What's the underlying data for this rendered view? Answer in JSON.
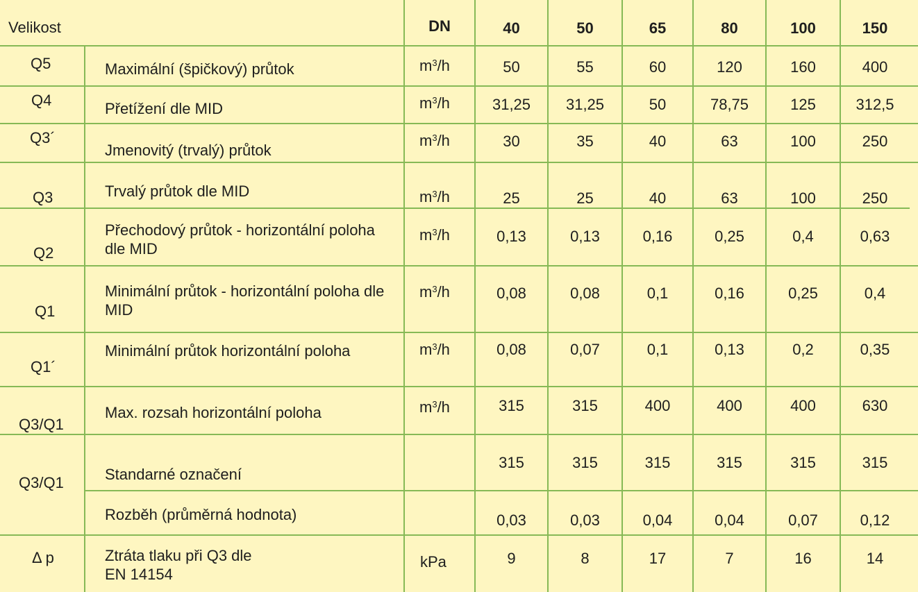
{
  "header": {
    "size_label": "Velikost",
    "dn_label": "DN",
    "sizes": [
      "40",
      "50",
      "65",
      "80",
      "100",
      "150"
    ]
  },
  "rows": [
    {
      "symbol": "Q5",
      "desc": "Maximální (špičkový) průtok",
      "unit": "m3/h",
      "values": [
        "50",
        "55",
        "60",
        "120",
        "160",
        "400"
      ]
    },
    {
      "symbol": "Q4",
      "desc": "Přetížení dle MID",
      "unit": "m3/h",
      "values": [
        "31,25",
        "31,25",
        "50",
        "78,75",
        "125",
        "312,5"
      ]
    },
    {
      "symbol": "Q3´",
      "desc": "Jmenovitý (trvalý) průtok",
      "unit": "m3/h",
      "values": [
        "30",
        "35",
        "40",
        "63",
        "100",
        "250"
      ]
    },
    {
      "symbol": "Q3",
      "desc": "Trvalý průtok dle MID",
      "unit": "m3/h",
      "values": [
        "25",
        "25",
        "40",
        "63",
        "100",
        "250"
      ]
    },
    {
      "symbol": "Q2",
      "desc": "Přechodový průtok - horizontální poloha dle MID",
      "unit": "m3/h",
      "values": [
        "0,13",
        "0,13",
        "0,16",
        "0,25",
        "0,4",
        "0,63"
      ]
    },
    {
      "symbol": "Q1",
      "desc": "Minimální průtok - horizontální poloha dle MID",
      "unit": "m3/h",
      "values": [
        "0,08",
        "0,08",
        "0,1",
        "0,16",
        "0,25",
        "0,4"
      ]
    },
    {
      "symbol": "Q1´",
      "desc": "Minimální průtok horizontální poloha",
      "unit": "m3/h",
      "values": [
        "0,08",
        "0,07",
        "0,1",
        "0,13",
        "0,2",
        "0,35"
      ]
    },
    {
      "symbol": "Q3/Q1",
      "desc": "Max. rozsah horizontální poloha",
      "unit": "m3/h",
      "values": [
        "315",
        "315",
        "400",
        "400",
        "400",
        "630"
      ]
    },
    {
      "symbol": "Q3/Q1",
      "desc": "Standarné označení",
      "unit": "",
      "values": [
        "315",
        "315",
        "315",
        "315",
        "315",
        "315"
      ]
    },
    {
      "symbol": "",
      "desc": "Rozběh (průměrná hodnota)",
      "unit": "",
      "values": [
        "0,03",
        "0,03",
        "0,04",
        "0,04",
        "0,07",
        "0,12"
      ]
    },
    {
      "symbol": "Δ p",
      "desc": "Ztráta tlaku při Q3 dle EN 14154",
      "unit": "kPa",
      "values": [
        "9",
        "8",
        "17",
        "7",
        "16",
        "14"
      ]
    }
  ]
}
